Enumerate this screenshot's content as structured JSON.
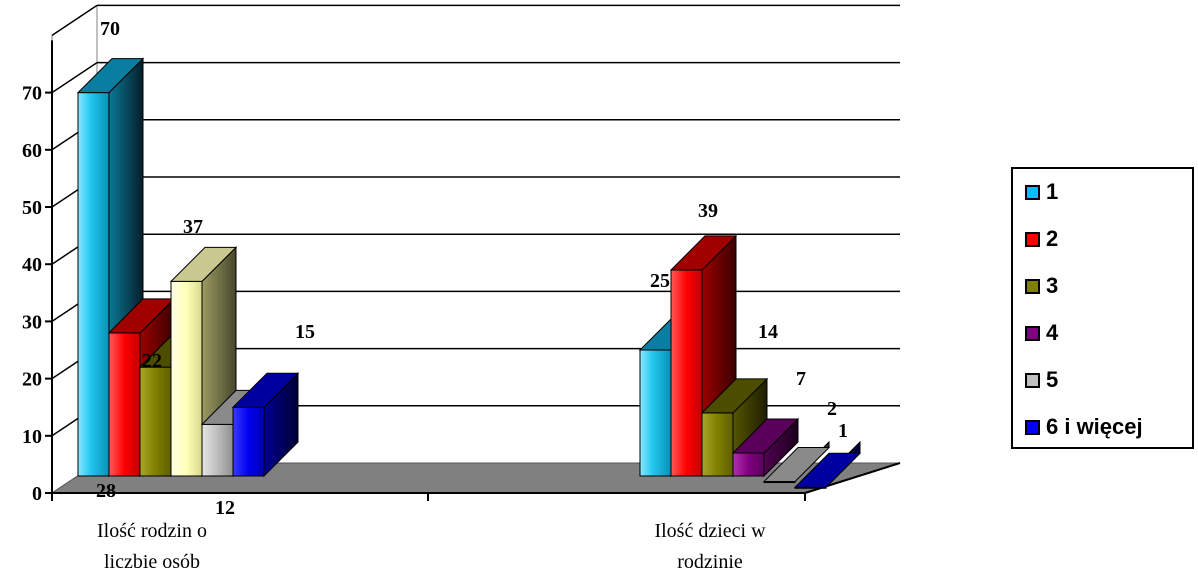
{
  "chart_data": {
    "type": "bar",
    "style": "3d-clustered",
    "categories": [
      "Ilość rodzin o liczbie osób",
      "Ilość dzieci w rodzinie"
    ],
    "category_lines": [
      [
        "Ilość rodzin o",
        "liczbie osób"
      ],
      [
        "Ilość dzieci w",
        "rodzinie"
      ]
    ],
    "series": [
      {
        "name": "1",
        "values": [
          70,
          25
        ],
        "color": "#00BFFF"
      },
      {
        "name": "2",
        "values": [
          28,
          39
        ],
        "color": "#FF0000"
      },
      {
        "name": "3",
        "values": [
          22,
          14
        ],
        "color": "#808000"
      },
      {
        "name": "4",
        "values": [
          37,
          7
        ],
        "color": "#800080"
      },
      {
        "name": "5",
        "values": [
          12,
          2
        ],
        "color": "#C0C0C0"
      },
      {
        "name": "6 i więcej",
        "values": [
          15,
          1
        ],
        "color": "#0000FF"
      }
    ],
    "series_colors_by_category": [
      [
        "#00BFFF",
        "#FF0000",
        "#808000",
        "#FFFFC0",
        "#C0C0C0",
        "#0000FF"
      ],
      [
        "#00BFFF",
        "#FF0000",
        "#808000",
        "#800080",
        "#C0C0C0",
        "#0000FF"
      ]
    ],
    "data_labels": [
      [
        "70",
        "28",
        "22",
        "37",
        "12",
        "15"
      ],
      [
        "25",
        "39",
        "14",
        "7",
        "2",
        "1"
      ]
    ],
    "y_ticks": [
      "0",
      "10",
      "20",
      "30",
      "40",
      "50",
      "60",
      "70"
    ],
    "ylim": [
      0,
      80
    ],
    "floor_color": "#808080",
    "grid": true,
    "legend_position": "right"
  }
}
